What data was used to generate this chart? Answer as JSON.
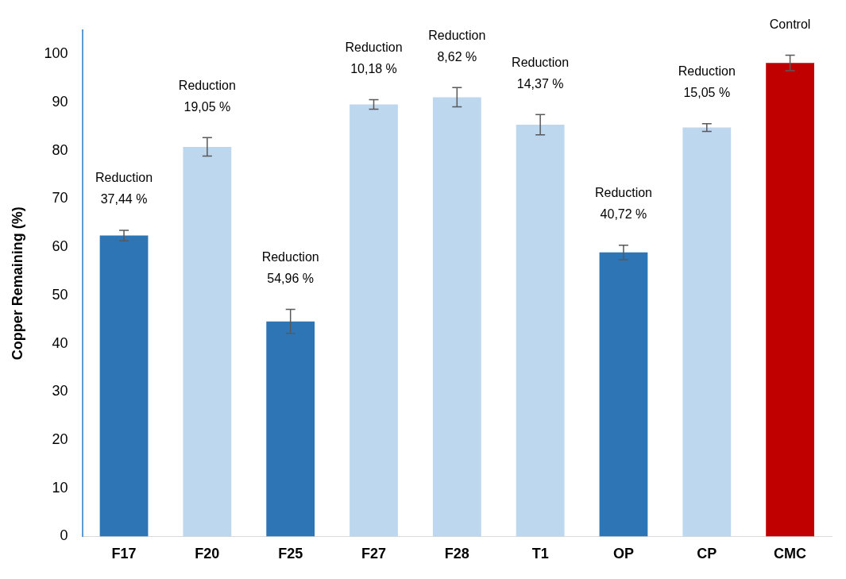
{
  "chart_data": {
    "type": "bar",
    "ylabel": "Copper Remaining (%)",
    "categories": [
      "F17",
      "F20",
      "F25",
      "F27",
      "F28",
      "T1",
      "OP",
      "CP",
      "CMC"
    ],
    "values": [
      62.4,
      80.8,
      44.6,
      89.6,
      91.1,
      85.4,
      58.9,
      84.8,
      98.2
    ],
    "errors": [
      1.1,
      1.9,
      2.5,
      1,
      2,
      2.1,
      1.5,
      0.8,
      1.6
    ],
    "colors": [
      "#2e75b6",
      "#bdd7ee",
      "#2e75b6",
      "#bdd7ee",
      "#bdd7ee",
      "#bdd7ee",
      "#2e75b6",
      "#bdd7ee",
      "#c00000"
    ],
    "ylim": [
      0,
      105
    ],
    "yticks": [
      0,
      10,
      20,
      30,
      40,
      50,
      60,
      70,
      80,
      90,
      100
    ],
    "grid": false,
    "legend": false,
    "annotations": [
      "Reduction\n37,44 %",
      "Reduction\n19,05 %",
      "Reduction\n54,96 %",
      "Reduction\n10,18 %",
      "Reduction\n8,62 %",
      "Reduction\n14,37 %",
      "Reduction\n40,72 %",
      "Reduction\n15,05 %",
      "Control"
    ]
  }
}
